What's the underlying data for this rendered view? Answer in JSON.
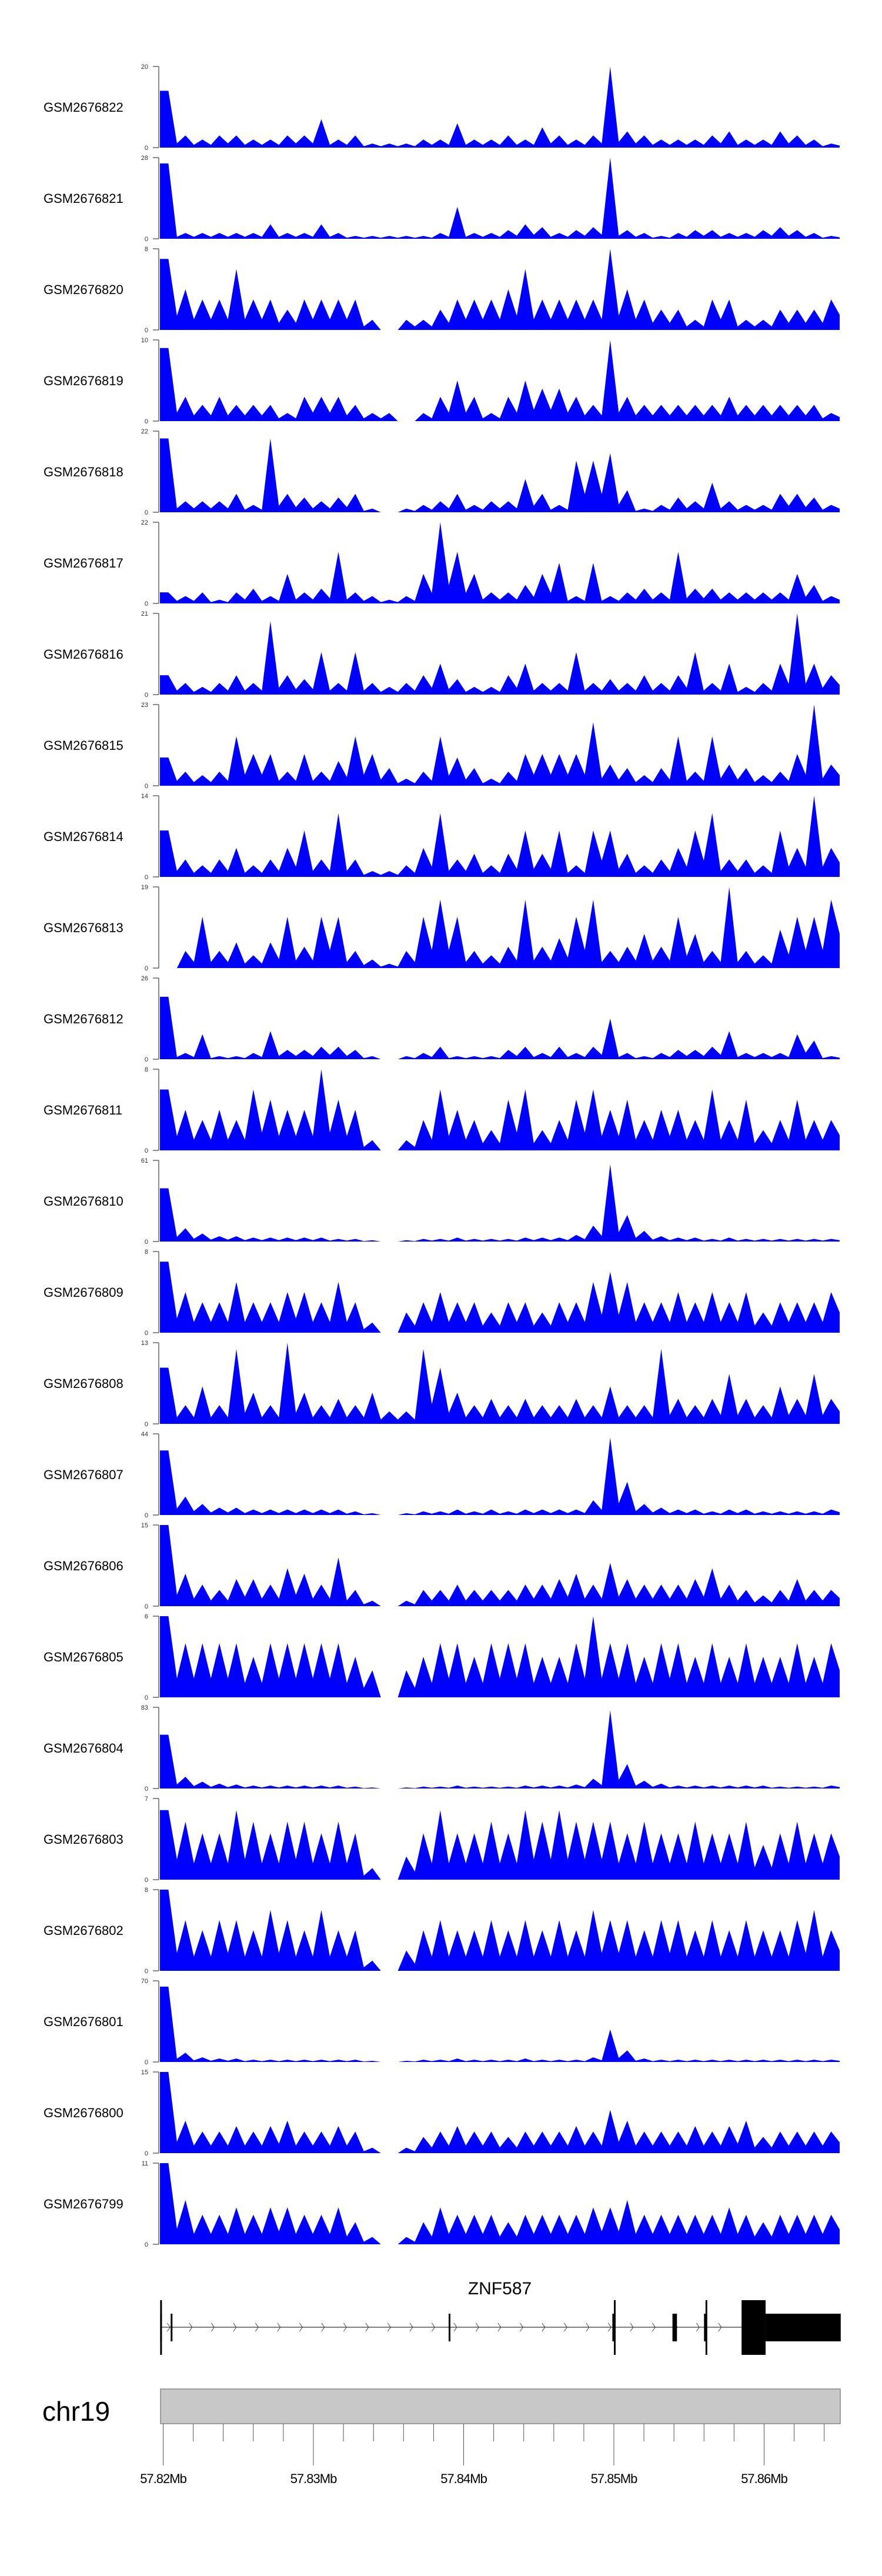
{
  "chart_data": {
    "type": "area",
    "title": "",
    "xlabel": "",
    "ylabel": "",
    "chromosome": "chr19",
    "xlim_mb": [
      57.82,
      57.865
    ],
    "bins": 40,
    "fill_color": "#0000ff",
    "x_ticks": [
      "57.82Mb",
      "57.83Mb",
      "57.84Mb",
      "57.85Mb",
      "57.86Mb"
    ],
    "x_tick_values": [
      57.82,
      57.83,
      57.84,
      57.85,
      57.86
    ],
    "tracks": [
      {
        "name": "GSM2676822",
        "ymax": 20,
        "values": [
          14,
          3,
          2,
          3,
          3,
          2,
          2,
          3,
          3,
          7,
          2,
          3,
          1,
          1,
          1,
          2,
          2,
          6,
          2,
          2,
          3,
          2,
          5,
          3,
          2,
          3,
          20,
          4,
          3,
          2,
          2,
          2,
          3,
          4,
          2,
          2,
          4,
          3,
          2,
          1
        ]
      },
      {
        "name": "GSM2676821",
        "ymax": 28,
        "values": [
          26,
          2,
          2,
          2,
          2,
          2,
          5,
          2,
          2,
          5,
          2,
          1,
          1,
          1,
          1,
          1,
          2,
          11,
          2,
          2,
          3,
          5,
          4,
          2,
          3,
          4,
          28,
          3,
          2,
          1,
          2,
          3,
          3,
          2,
          2,
          3,
          4,
          3,
          2,
          1
        ]
      },
      {
        "name": "GSM2676820",
        "ymax": 8,
        "values": [
          7,
          4,
          3,
          3,
          6,
          3,
          3,
          2,
          3,
          3,
          3,
          3,
          1,
          0,
          1,
          1,
          2,
          3,
          3,
          3,
          4,
          6,
          3,
          3,
          3,
          3,
          8,
          4,
          3,
          2,
          2,
          1,
          3,
          3,
          1,
          1,
          2,
          2,
          2,
          3
        ]
      },
      {
        "name": "GSM2676819",
        "ymax": 10,
        "values": [
          9,
          3,
          2,
          3,
          2,
          2,
          2,
          1,
          3,
          3,
          3,
          2,
          1,
          1,
          0,
          1,
          3,
          5,
          3,
          1,
          3,
          5,
          4,
          4,
          3,
          2,
          10,
          3,
          2,
          2,
          2,
          2,
          2,
          3,
          2,
          2,
          2,
          2,
          2,
          1
        ]
      },
      {
        "name": "GSM2676818",
        "ymax": 22,
        "values": [
          20,
          3,
          3,
          3,
          5,
          2,
          20,
          5,
          4,
          3,
          4,
          5,
          1,
          0,
          1,
          2,
          3,
          5,
          2,
          3,
          3,
          9,
          5,
          2,
          14,
          14,
          16,
          6,
          1,
          2,
          4,
          3,
          8,
          3,
          2,
          2,
          5,
          5,
          4,
          2
        ]
      },
      {
        "name": "GSM2676817",
        "ymax": 22,
        "values": [
          3,
          2,
          3,
          1,
          3,
          4,
          2,
          8,
          3,
          4,
          14,
          3,
          2,
          1,
          2,
          8,
          22,
          14,
          8,
          3,
          3,
          5,
          8,
          11,
          2,
          11,
          2,
          3,
          4,
          3,
          14,
          4,
          4,
          3,
          3,
          3,
          3,
          8,
          5,
          2
        ]
      },
      {
        "name": "GSM2676816",
        "ymax": 21,
        "values": [
          5,
          3,
          2,
          3,
          5,
          3,
          19,
          5,
          4,
          11,
          3,
          11,
          3,
          2,
          3,
          5,
          8,
          4,
          2,
          2,
          5,
          8,
          3,
          3,
          11,
          3,
          4,
          3,
          5,
          3,
          5,
          11,
          3,
          8,
          2,
          3,
          8,
          21,
          8,
          5
        ]
      },
      {
        "name": "GSM2676815",
        "ymax": 23,
        "values": [
          8,
          4,
          3,
          4,
          14,
          9,
          9,
          4,
          9,
          4,
          7,
          14,
          9,
          5,
          2,
          4,
          14,
          8,
          5,
          2,
          4,
          9,
          9,
          9,
          9,
          18,
          6,
          5,
          3,
          5,
          14,
          4,
          14,
          6,
          5,
          3,
          4,
          9,
          23,
          6
        ]
      },
      {
        "name": "GSM2676814",
        "ymax": 14,
        "values": [
          8,
          3,
          2,
          3,
          5,
          2,
          3,
          5,
          8,
          3,
          11,
          3,
          1,
          1,
          2,
          5,
          11,
          3,
          4,
          2,
          4,
          8,
          4,
          8,
          2,
          8,
          8,
          4,
          2,
          3,
          5,
          8,
          11,
          3,
          3,
          2,
          8,
          5,
          14,
          5
        ]
      },
      {
        "name": "GSM2676813",
        "ymax": 19,
        "values": [
          0,
          4,
          12,
          4,
          6,
          3,
          6,
          12,
          5,
          12,
          12,
          4,
          2,
          1,
          4,
          12,
          16,
          12,
          4,
          3,
          5,
          16,
          5,
          7,
          12,
          16,
          4,
          5,
          8,
          5,
          12,
          8,
          4,
          19,
          4,
          3,
          9,
          12,
          12,
          16
        ]
      },
      {
        "name": "GSM2676812",
        "ymax": 26,
        "values": [
          20,
          2,
          8,
          1,
          1,
          2,
          9,
          3,
          3,
          4,
          4,
          3,
          1,
          0,
          1,
          2,
          4,
          1,
          1,
          1,
          3,
          4,
          2,
          4,
          2,
          4,
          13,
          2,
          1,
          2,
          3,
          3,
          4,
          9,
          2,
          2,
          2,
          8,
          6,
          1
        ]
      },
      {
        "name": "GSM2676811",
        "ymax": 8,
        "values": [
          6,
          4,
          3,
          4,
          3,
          6,
          5,
          4,
          4,
          8,
          5,
          4,
          1,
          0,
          1,
          3,
          6,
          4,
          3,
          2,
          5,
          6,
          2,
          3,
          5,
          6,
          4,
          5,
          3,
          4,
          4,
          3,
          6,
          3,
          5,
          2,
          3,
          5,
          3,
          3
        ]
      },
      {
        "name": "GSM2676810",
        "ymax": 61,
        "values": [
          40,
          10,
          6,
          4,
          4,
          3,
          3,
          3,
          3,
          3,
          2,
          2,
          1,
          0,
          1,
          2,
          2,
          3,
          2,
          2,
          2,
          3,
          3,
          3,
          5,
          12,
          58,
          20,
          8,
          4,
          3,
          3,
          2,
          3,
          2,
          2,
          2,
          2,
          2,
          2
        ]
      },
      {
        "name": "GSM2676809",
        "ymax": 8,
        "values": [
          7,
          4,
          3,
          3,
          5,
          3,
          3,
          4,
          4,
          3,
          5,
          3,
          1,
          0,
          2,
          3,
          4,
          3,
          3,
          2,
          3,
          3,
          2,
          3,
          3,
          5,
          6,
          5,
          3,
          3,
          4,
          3,
          4,
          3,
          4,
          2,
          3,
          3,
          3,
          4
        ]
      },
      {
        "name": "GSM2676808",
        "ymax": 13,
        "values": [
          9,
          3,
          6,
          3,
          12,
          5,
          3,
          13,
          5,
          3,
          4,
          3,
          5,
          2,
          2,
          12,
          9,
          5,
          3,
          4,
          3,
          4,
          3,
          3,
          4,
          3,
          6,
          3,
          3,
          12,
          4,
          3,
          4,
          8,
          4,
          3,
          6,
          4,
          8,
          4
        ]
      },
      {
        "name": "GSM2676807",
        "ymax": 44,
        "values": [
          35,
          10,
          6,
          4,
          4,
          3,
          3,
          3,
          3,
          3,
          3,
          2,
          1,
          0,
          1,
          2,
          2,
          3,
          2,
          3,
          2,
          3,
          3,
          3,
          3,
          8,
          42,
          18,
          6,
          4,
          3,
          3,
          2,
          3,
          3,
          2,
          2,
          2,
          2,
          3
        ]
      },
      {
        "name": "GSM2676806",
        "ymax": 15,
        "values": [
          15,
          6,
          4,
          3,
          5,
          5,
          4,
          7,
          6,
          4,
          9,
          3,
          1,
          0,
          1,
          3,
          3,
          4,
          3,
          3,
          3,
          4,
          4,
          5,
          6,
          4,
          8,
          5,
          4,
          4,
          4,
          5,
          7,
          4,
          3,
          2,
          3,
          5,
          3,
          3
        ]
      },
      {
        "name": "GSM2676805",
        "ymax": 6,
        "values": [
          6,
          4,
          4,
          4,
          4,
          3,
          4,
          4,
          4,
          4,
          4,
          3,
          2,
          0,
          2,
          3,
          4,
          4,
          3,
          4,
          4,
          4,
          3,
          3,
          4,
          6,
          4,
          4,
          3,
          4,
          4,
          3,
          4,
          3,
          4,
          3,
          3,
          4,
          3,
          4
        ]
      },
      {
        "name": "GSM2676804",
        "ymax": 83,
        "values": [
          55,
          12,
          7,
          5,
          4,
          3,
          3,
          3,
          3,
          3,
          3,
          2,
          1,
          0,
          1,
          2,
          2,
          3,
          2,
          2,
          2,
          3,
          3,
          3,
          4,
          10,
          80,
          25,
          8,
          5,
          3,
          3,
          3,
          3,
          3,
          3,
          2,
          2,
          2,
          3
        ]
      },
      {
        "name": "GSM2676803",
        "ymax": 7,
        "values": [
          6,
          5,
          4,
          4,
          6,
          5,
          4,
          5,
          5,
          4,
          5,
          4,
          1,
          0,
          2,
          4,
          6,
          4,
          4,
          5,
          4,
          6,
          5,
          6,
          5,
          5,
          5,
          4,
          5,
          4,
          4,
          5,
          4,
          4,
          5,
          3,
          4,
          5,
          4,
          4
        ]
      },
      {
        "name": "GSM2676802",
        "ymax": 8,
        "values": [
          8,
          5,
          4,
          5,
          5,
          4,
          6,
          5,
          4,
          6,
          4,
          4,
          1,
          0,
          2,
          4,
          5,
          4,
          4,
          5,
          4,
          5,
          4,
          5,
          4,
          6,
          5,
          5,
          4,
          5,
          5,
          4,
          5,
          4,
          5,
          4,
          4,
          5,
          6,
          4
        ]
      },
      {
        "name": "GSM2676801",
        "ymax": 70,
        "values": [
          65,
          8,
          4,
          3,
          3,
          2,
          2,
          2,
          2,
          2,
          2,
          2,
          1,
          0,
          1,
          2,
          2,
          3,
          2,
          2,
          2,
          3,
          2,
          2,
          2,
          4,
          28,
          10,
          3,
          2,
          2,
          2,
          2,
          2,
          2,
          2,
          2,
          2,
          2,
          2
        ]
      },
      {
        "name": "GSM2676800",
        "ymax": 15,
        "values": [
          15,
          6,
          4,
          4,
          5,
          4,
          5,
          6,
          4,
          4,
          5,
          4,
          1,
          0,
          1,
          3,
          4,
          5,
          4,
          4,
          3,
          4,
          4,
          4,
          5,
          4,
          8,
          6,
          4,
          4,
          4,
          5,
          4,
          5,
          6,
          3,
          4,
          4,
          4,
          4
        ]
      },
      {
        "name": "GSM2676799",
        "ymax": 11,
        "values": [
          11,
          6,
          4,
          4,
          5,
          4,
          5,
          5,
          4,
          4,
          5,
          3,
          1,
          0,
          1,
          3,
          5,
          4,
          4,
          4,
          3,
          4,
          4,
          4,
          4,
          5,
          5,
          6,
          4,
          4,
          4,
          4,
          4,
          5,
          4,
          3,
          4,
          4,
          4,
          4
        ]
      }
    ],
    "gene": {
      "name": "ZNF587",
      "strand": "+",
      "start_mb": 57.8198,
      "end_mb": 57.8651,
      "exons": [
        {
          "start": 57.8198,
          "end": 57.8199,
          "kind": "coding"
        },
        {
          "start": 57.8198,
          "end": 57.8199,
          "kind": "utr"
        },
        {
          "start": 57.8205,
          "end": 57.8206,
          "kind": "utr"
        },
        {
          "start": 57.839,
          "end": 57.8391,
          "kind": "utr"
        },
        {
          "start": 57.8499,
          "end": 57.85,
          "kind": "utr"
        },
        {
          "start": 57.85,
          "end": 57.8501,
          "kind": "coding"
        },
        {
          "start": 57.8539,
          "end": 57.8542,
          "kind": "utr"
        },
        {
          "start": 57.856,
          "end": 57.8561,
          "kind": "utr"
        },
        {
          "start": 57.8561,
          "end": 57.8562,
          "kind": "coding"
        },
        {
          "start": 57.8585,
          "end": 57.8601,
          "kind": "coding"
        },
        {
          "start": 57.8601,
          "end": 57.8651,
          "kind": "utr"
        }
      ]
    }
  }
}
